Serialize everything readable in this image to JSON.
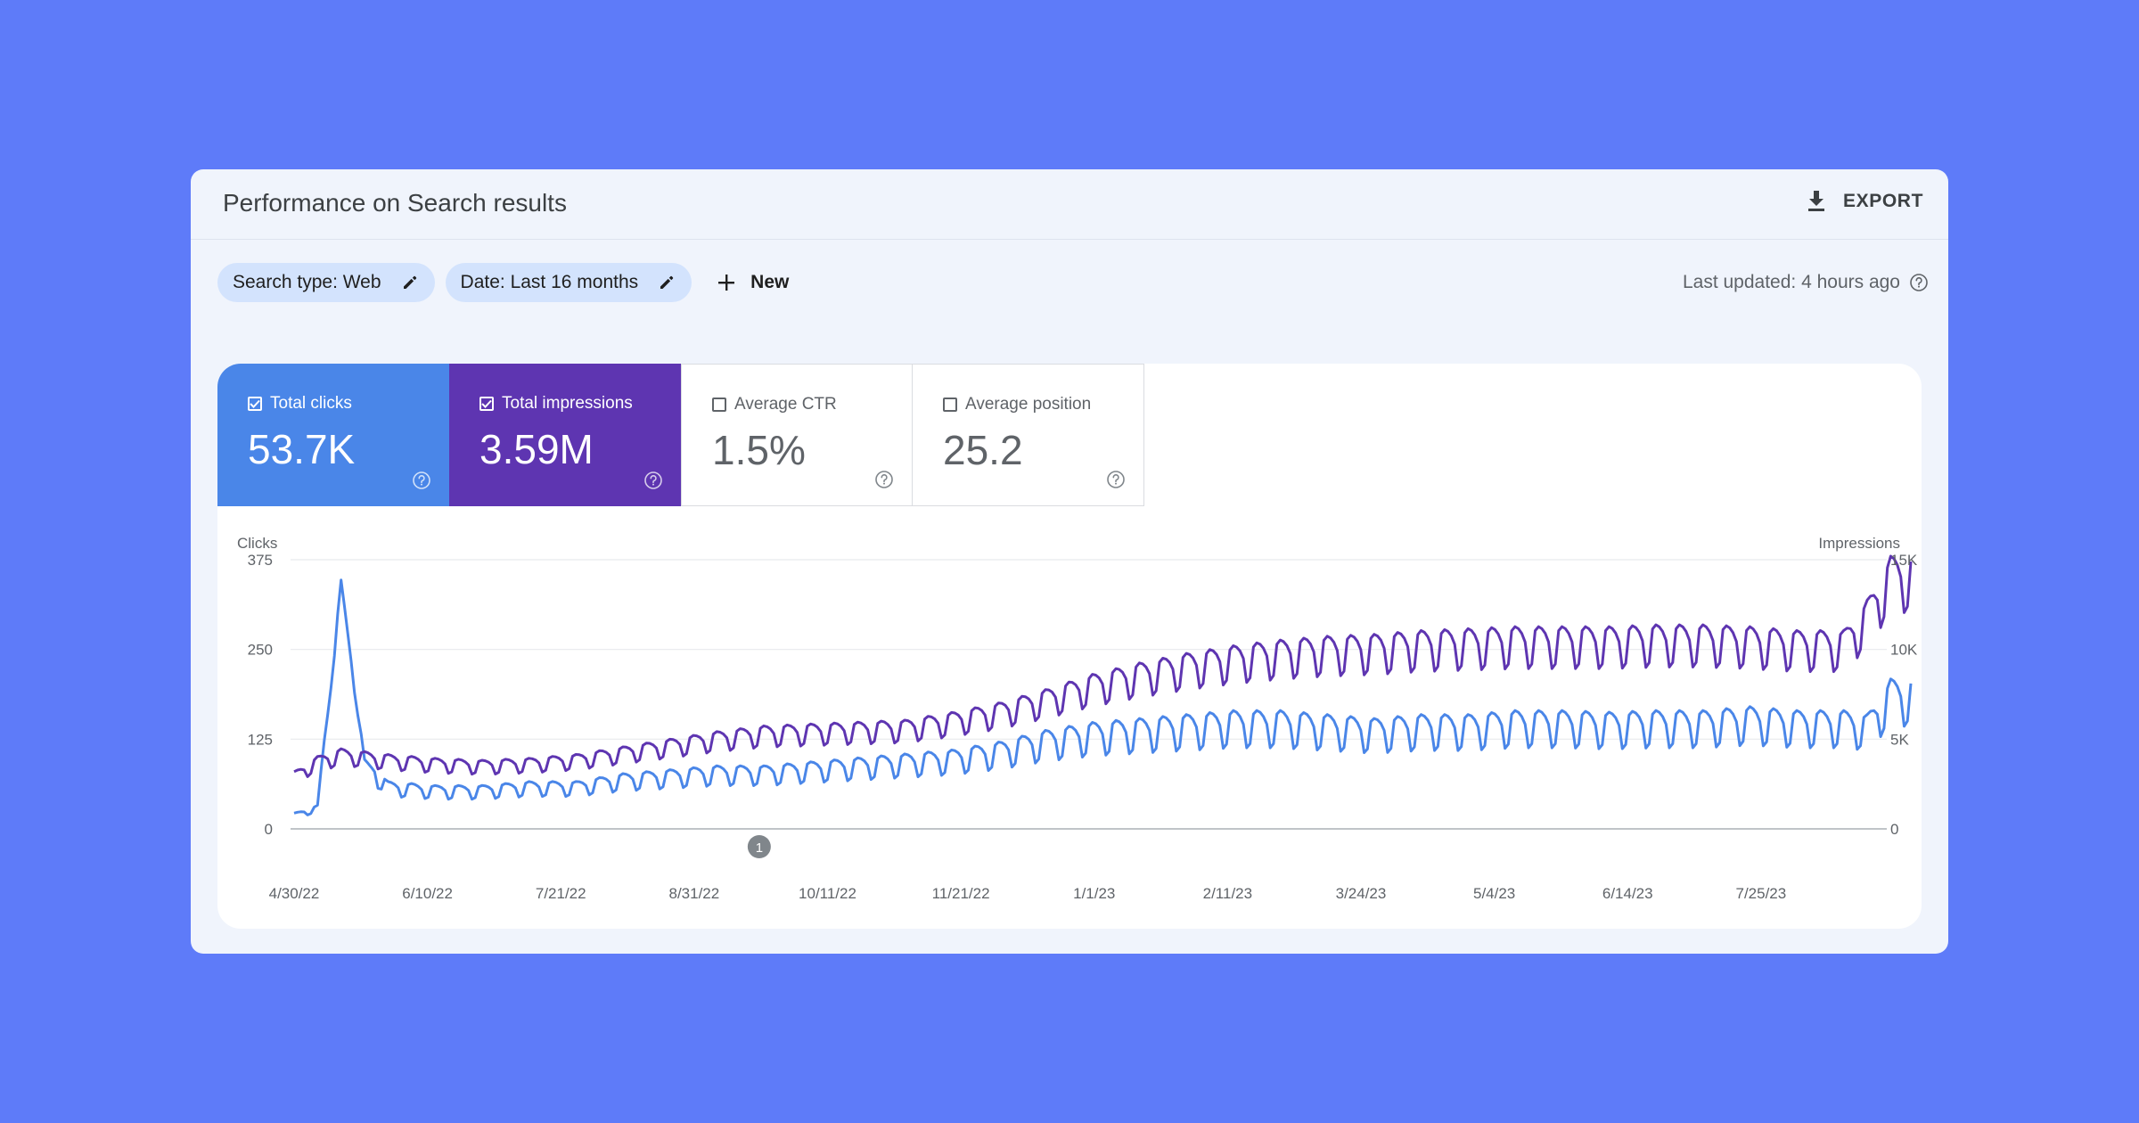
{
  "panel": {
    "title": "Performance on Search results",
    "export_label": "EXPORT",
    "export_icon": "download-icon"
  },
  "filters": {
    "chips": [
      {
        "label": "Search type: Web",
        "icon": "pencil-icon"
      },
      {
        "label": "Date: Last 16 months",
        "icon": "pencil-icon"
      }
    ],
    "new_label": "New",
    "new_icon": "plus-icon"
  },
  "last_updated": "Last updated: 4 hours ago",
  "metrics": [
    {
      "label": "Total clicks",
      "value": "53.7K",
      "checked": true,
      "color": "#4a86e8"
    },
    {
      "label": "Total impressions",
      "value": "3.59M",
      "checked": true,
      "color": "#5e35b1"
    },
    {
      "label": "Average CTR",
      "value": "1.5%",
      "checked": false
    },
    {
      "label": "Average position",
      "value": "25.2",
      "checked": false
    }
  ],
  "chart_data": {
    "type": "line",
    "ylabel_left": "Clicks",
    "ylabel_right": "Impressions",
    "y_left_ticks": [
      "375",
      "250",
      "125",
      "0"
    ],
    "y_right_ticks": [
      "15K",
      "10K",
      "5K",
      "0"
    ],
    "y_left_range": [
      0,
      375
    ],
    "y_right_range": [
      0,
      15000
    ],
    "x_ticks": [
      "4/30/22",
      "6/10/22",
      "7/21/22",
      "8/31/22",
      "10/11/22",
      "11/21/22",
      "1/1/23",
      "2/11/23",
      "3/24/23",
      "5/4/23",
      "6/14/23",
      "7/25/23"
    ],
    "annotation": {
      "label": "1",
      "date": "9/20/22"
    },
    "grid": true,
    "series": [
      {
        "name": "Clicks",
        "axis": "left",
        "color": "#4a86e8",
        "weekly_trend": [
          [
            0,
            20
          ],
          [
            1,
            30
          ],
          [
            2,
            340
          ],
          [
            3,
            95
          ],
          [
            4,
            60
          ],
          [
            6,
            55
          ],
          [
            8,
            55
          ],
          [
            10,
            60
          ],
          [
            12,
            60
          ],
          [
            14,
            70
          ],
          [
            16,
            75
          ],
          [
            18,
            80
          ],
          [
            20,
            80
          ],
          [
            22,
            85
          ],
          [
            24,
            90
          ],
          [
            26,
            95
          ],
          [
            28,
            100
          ],
          [
            30,
            110
          ],
          [
            32,
            125
          ],
          [
            34,
            135
          ],
          [
            36,
            140
          ],
          [
            38,
            145
          ],
          [
            40,
            150
          ],
          [
            42,
            150
          ],
          [
            44,
            145
          ],
          [
            46,
            140
          ],
          [
            48,
            145
          ],
          [
            50,
            145
          ],
          [
            52,
            150
          ],
          [
            54,
            150
          ],
          [
            56,
            148
          ],
          [
            58,
            150
          ],
          [
            60,
            150
          ],
          [
            62,
            155
          ],
          [
            64,
            150
          ],
          [
            66,
            150
          ],
          [
            67,
            145
          ],
          [
            68,
            190
          ]
        ]
      },
      {
        "name": "Impressions",
        "axis": "right",
        "color": "#5e35b1",
        "weekly_trend": [
          [
            0,
            3000
          ],
          [
            1,
            3800
          ],
          [
            2,
            4200
          ],
          [
            4,
            3900
          ],
          [
            6,
            3700
          ],
          [
            8,
            3600
          ],
          [
            10,
            3700
          ],
          [
            12,
            3900
          ],
          [
            14,
            4300
          ],
          [
            16,
            4700
          ],
          [
            18,
            5100
          ],
          [
            20,
            5400
          ],
          [
            22,
            5500
          ],
          [
            24,
            5600
          ],
          [
            26,
            5700
          ],
          [
            28,
            6100
          ],
          [
            30,
            6600
          ],
          [
            32,
            7300
          ],
          [
            34,
            8100
          ],
          [
            36,
            8700
          ],
          [
            38,
            9200
          ],
          [
            40,
            9600
          ],
          [
            42,
            9900
          ],
          [
            44,
            10100
          ],
          [
            46,
            10200
          ],
          [
            48,
            10400
          ],
          [
            50,
            10500
          ],
          [
            52,
            10600
          ],
          [
            54,
            10600
          ],
          [
            56,
            10600
          ],
          [
            58,
            10700
          ],
          [
            60,
            10700
          ],
          [
            62,
            10600
          ],
          [
            64,
            10400
          ],
          [
            66,
            10400
          ],
          [
            67,
            12000
          ],
          [
            68,
            14300
          ]
        ]
      }
    ]
  }
}
